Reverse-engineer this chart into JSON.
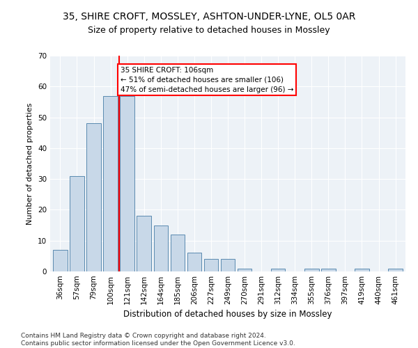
{
  "title1": "35, SHIRE CROFT, MOSSLEY, ASHTON-UNDER-LYNE, OL5 0AR",
  "title2": "Size of property relative to detached houses in Mossley",
  "xlabel": "Distribution of detached houses by size in Mossley",
  "ylabel": "Number of detached properties",
  "categories": [
    "36sqm",
    "57sqm",
    "79sqm",
    "100sqm",
    "121sqm",
    "142sqm",
    "164sqm",
    "185sqm",
    "206sqm",
    "227sqm",
    "249sqm",
    "270sqm",
    "291sqm",
    "312sqm",
    "334sqm",
    "355sqm",
    "376sqm",
    "397sqm",
    "419sqm",
    "440sqm",
    "461sqm"
  ],
  "values": [
    7,
    31,
    48,
    57,
    57,
    18,
    15,
    12,
    6,
    4,
    4,
    1,
    0,
    1,
    0,
    1,
    1,
    0,
    1,
    0,
    1
  ],
  "bar_color": "#c8d8e8",
  "bar_edge_color": "#5a8ab0",
  "annotation_text": "35 SHIRE CROFT: 106sqm\n← 51% of detached houses are smaller (106)\n47% of semi-detached houses are larger (96) →",
  "annotation_box_color": "white",
  "annotation_box_edge_color": "red",
  "red_line_color": "red",
  "ylim": [
    0,
    70
  ],
  "yticks": [
    0,
    10,
    20,
    30,
    40,
    50,
    60,
    70
  ],
  "footnote": "Contains HM Land Registry data © Crown copyright and database right 2024.\nContains public sector information licensed under the Open Government Licence v3.0.",
  "plot_bg_color": "#edf2f7",
  "title1_fontsize": 10,
  "title2_fontsize": 9,
  "xlabel_fontsize": 8.5,
  "ylabel_fontsize": 8,
  "tick_fontsize": 7.5,
  "footnote_fontsize": 6.5,
  "annotation_fontsize": 7.5
}
